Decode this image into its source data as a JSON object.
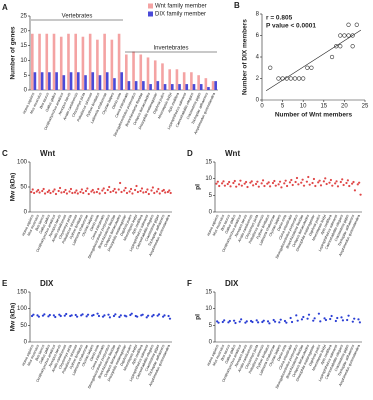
{
  "chart_data": [
    {
      "type": "bar",
      "panel": "A",
      "ylabel": "Number of genes",
      "categories": [
        "Homo sapiens",
        "Mus musculus",
        "Bos taurus",
        "Gallus gallus",
        "Ornithorhynchus anatinus",
        "Xenopus laevis",
        "Anolis carolinensis",
        "Chrysemys picta",
        "Pelodiscus sinensis",
        "Python bivittatus",
        "Latimeria chalumnae",
        "Oryzias latipes",
        "Danio rerio",
        "Ciona intestinalis",
        "Strongylocentrotus purpuratus",
        "Branchiostoma floridae",
        "Octopus bimaculoides",
        "Drosophila melanogaster",
        "Daphnia pulex",
        "Mnemiopsis leidyi",
        "Apis mellifera",
        "Lepeophtheirus salmonis",
        "Caenorhabditis elegans",
        "Crassostrea gigas",
        "Trichoplax adhaerens",
        "Amphimedon queenslandica"
      ],
      "series": [
        {
          "name": "Wnt family member",
          "color": "#f4a3a3",
          "values": [
            19,
            19,
            19,
            19,
            18,
            19,
            19,
            18,
            19,
            17,
            19,
            17,
            19,
            12,
            13,
            12,
            11,
            10,
            9,
            7,
            7,
            6,
            6,
            5,
            4,
            3
          ]
        },
        {
          "name": "DIX family member",
          "color": "#4a4ad8",
          "values": [
            6,
            6,
            6,
            6,
            5,
            6,
            6,
            5,
            6,
            5,
            6,
            4,
            6,
            3,
            3,
            3,
            2,
            3,
            2,
            2,
            2,
            2,
            2,
            2,
            1,
            3
          ]
        }
      ],
      "ylim": [
        0,
        25
      ],
      "yticks": [
        0,
        5,
        10,
        15,
        20,
        25
      ],
      "annotations": [
        "Vertebrates",
        "Invertebrates"
      ]
    },
    {
      "type": "scatter",
      "panel": "B",
      "xlabel": "Number of Wnt members",
      "ylabel": "Number of DIX members",
      "annotations": [
        "r = 0.805",
        "P value < 0.0001"
      ],
      "x": [
        2,
        4,
        5,
        6,
        7,
        8,
        9,
        10,
        11,
        12,
        17,
        18,
        19,
        19,
        20,
        21,
        21,
        22,
        22,
        23
      ],
      "y": [
        3,
        2,
        2,
        2,
        2,
        2,
        2,
        2,
        3,
        3,
        4,
        5,
        6,
        5,
        6,
        7,
        6,
        5,
        6,
        7
      ],
      "color": "#333333",
      "xlim": [
        0,
        25
      ],
      "xticks": [
        0,
        5,
        10,
        15,
        20,
        25
      ],
      "ylim": [
        0,
        8
      ],
      "yticks": [
        0,
        2,
        4,
        6,
        8
      ]
    },
    {
      "type": "strip",
      "panel": "C",
      "title": "Wnt",
      "ylabel": "Mw (kDa)",
      "color": "#e04848",
      "ylim": [
        0,
        100
      ],
      "yticks": [
        0,
        50,
        100
      ],
      "values": [
        [
          40,
          45,
          38
        ],
        [
          41,
          44,
          39
        ],
        [
          42,
          46,
          37
        ],
        [
          40,
          43,
          38
        ],
        [
          41,
          45,
          36
        ],
        [
          42,
          48,
          39
        ],
        [
          40,
          44,
          37
        ],
        [
          41,
          46,
          38
        ],
        [
          39,
          43,
          37
        ],
        [
          40,
          45,
          38
        ],
        [
          42,
          47,
          36
        ],
        [
          41,
          44,
          39
        ],
        [
          40,
          46,
          37
        ],
        [
          43,
          47,
          38
        ],
        [
          44,
          50,
          40
        ],
        [
          42,
          46,
          39
        ],
        [
          45,
          58,
          40
        ],
        [
          43,
          48,
          38
        ],
        [
          41,
          46,
          37
        ],
        [
          44,
          52,
          40
        ],
        [
          42,
          47,
          39
        ],
        [
          40,
          45,
          36
        ],
        [
          43,
          49,
          38
        ],
        [
          41,
          46,
          37
        ],
        [
          42,
          44,
          39
        ],
        [
          40,
          43,
          38
        ]
      ]
    },
    {
      "type": "strip",
      "panel": "D",
      "title": "Wnt",
      "ylabel": "pI",
      "color": "#e04848",
      "ylim": [
        0,
        15
      ],
      "yticks": [
        0,
        5,
        10,
        15
      ],
      "values": [
        [
          8.5,
          9.1,
          7.8
        ],
        [
          8.6,
          9.2,
          7.9
        ],
        [
          8.4,
          9.0,
          7.7
        ],
        [
          8.7,
          9.3,
          7.6
        ],
        [
          8.3,
          9.4,
          7.9
        ],
        [
          8.5,
          9.0,
          7.5
        ],
        [
          8.8,
          9.2,
          8.0
        ],
        [
          8.4,
          9.1,
          7.6
        ],
        [
          8.6,
          9.5,
          7.8
        ],
        [
          8.5,
          8.9,
          7.7
        ],
        [
          8.7,
          9.3,
          7.9
        ],
        [
          8.3,
          9.1,
          7.4
        ],
        [
          8.6,
          9.4,
          7.8
        ],
        [
          8.9,
          9.6,
          8.1
        ],
        [
          9.0,
          10.2,
          8.3
        ],
        [
          8.8,
          9.7,
          7.9
        ],
        [
          9.1,
          10.5,
          8.2
        ],
        [
          8.7,
          9.9,
          7.8
        ],
        [
          8.9,
          9.4,
          8.0
        ],
        [
          9.2,
          10.1,
          8.4
        ],
        [
          8.8,
          9.6,
          7.9
        ],
        [
          8.6,
          9.2,
          7.7
        ],
        [
          9.0,
          9.8,
          8.1
        ],
        [
          8.7,
          9.5,
          7.8
        ],
        [
          8.5,
          9.0,
          6.5
        ],
        [
          8.3,
          8.8,
          5.2
        ]
      ]
    },
    {
      "type": "strip",
      "panel": "E",
      "title": "DIX",
      "ylabel": "Mw (kDa)",
      "color": "#2b3fd4",
      "ylim": [
        0,
        150
      ],
      "yticks": [
        0,
        50,
        100,
        150
      ],
      "values": [
        [
          78,
          82
        ],
        [
          80,
          76
        ],
        [
          79,
          83
        ],
        [
          77,
          81
        ],
        [
          80,
          75
        ],
        [
          82,
          78
        ],
        [
          79,
          84
        ],
        [
          78,
          80
        ],
        [
          81,
          76
        ],
        [
          80,
          83
        ],
        [
          77,
          82
        ],
        [
          79,
          81
        ],
        [
          85,
          78
        ],
        [
          76,
          80
        ],
        [
          82,
          74
        ],
        [
          78,
          83
        ],
        [
          75,
          80
        ],
        [
          79,
          77
        ],
        [
          81,
          85
        ],
        [
          78,
          76
        ],
        [
          80,
          82
        ],
        [
          74,
          79
        ],
        [
          77,
          81
        ],
        [
          79,
          83
        ],
        [
          76,
          80
        ],
        [
          78,
          70
        ]
      ]
    },
    {
      "type": "strip",
      "panel": "F",
      "title": "DIX",
      "ylabel": "pI",
      "color": "#2b3fd4",
      "ylim": [
        0,
        15
      ],
      "yticks": [
        0,
        5,
        10,
        15
      ],
      "values": [
        [
          6.2,
          5.8
        ],
        [
          6.0,
          6.5
        ],
        [
          5.9,
          6.3
        ],
        [
          6.4,
          5.7
        ],
        [
          6.1,
          6.8
        ],
        [
          5.8,
          6.2
        ],
        [
          6.3,
          6.0
        ],
        [
          6.5,
          5.9
        ],
        [
          6.0,
          6.4
        ],
        [
          6.2,
          5.6
        ],
        [
          6.6,
          6.1
        ],
        [
          5.9,
          6.7
        ],
        [
          6.3,
          5.8
        ],
        [
          7.2,
          6.0
        ],
        [
          8.0,
          6.4
        ],
        [
          6.8,
          7.5
        ],
        [
          7.0,
          8.2
        ],
        [
          6.4,
          7.1
        ],
        [
          8.5,
          6.2
        ],
        [
          7.1,
          6.6
        ],
        [
          6.9,
          7.8
        ],
        [
          6.3,
          7.2
        ],
        [
          7.4,
          6.5
        ],
        [
          6.6,
          7.9
        ],
        [
          6.1,
          7.0
        ],
        [
          6.8,
          5.9
        ]
      ]
    }
  ]
}
